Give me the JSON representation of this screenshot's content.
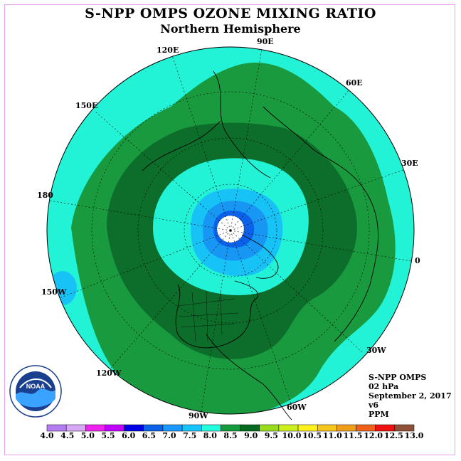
{
  "title": "S-NPP OMPS OZONE MIXING RATIO",
  "subtitle": "Northern Hemisphere",
  "longitude_labels": {
    "e90": "90E",
    "e120": "120E",
    "e60": "60E",
    "e150": "150E",
    "e30": "30E",
    "lon180": "180",
    "lon0": "0",
    "w150": "150W",
    "w30": "30W",
    "w120": "120W",
    "w60": "60W",
    "w90": "90W"
  },
  "info": {
    "instrument": "S-NPP OMPS",
    "level": "02 hPa",
    "date": "September 2, 2017",
    "version": "v6",
    "units": "PPM"
  },
  "logo": {
    "text": "NOAA"
  },
  "colorbar": {
    "ticks": [
      "4.0",
      "4.5",
      "5.0",
      "5.5",
      "6.0",
      "6.5",
      "7.0",
      "7.5",
      "8.0",
      "8.5",
      "9.0",
      "9.5",
      "10.0",
      "10.5",
      "11.0",
      "11.5",
      "12.0",
      "12.5",
      "13.0"
    ],
    "colors": [
      "#b47ef0",
      "#d7a8f4",
      "#ee22ee",
      "#c000ff",
      "#0000e8",
      "#0b62e8",
      "#1998ff",
      "#16c5ff",
      "#22ffdd",
      "#129a3c",
      "#056a20",
      "#99dd1a",
      "#ccf01a",
      "#fff21c",
      "#f6c51a",
      "#f09d1a",
      "#f06018",
      "#ee1010",
      "#8e5036"
    ]
  },
  "map_colors": {
    "c75": "#22f2d6",
    "c80": "#1a9a3f",
    "c85": "#0c6e2a",
    "c70": "#17c3f6",
    "c65": "#1896f4",
    "c60": "#0b62e8",
    "pole": "#ffffff"
  }
}
